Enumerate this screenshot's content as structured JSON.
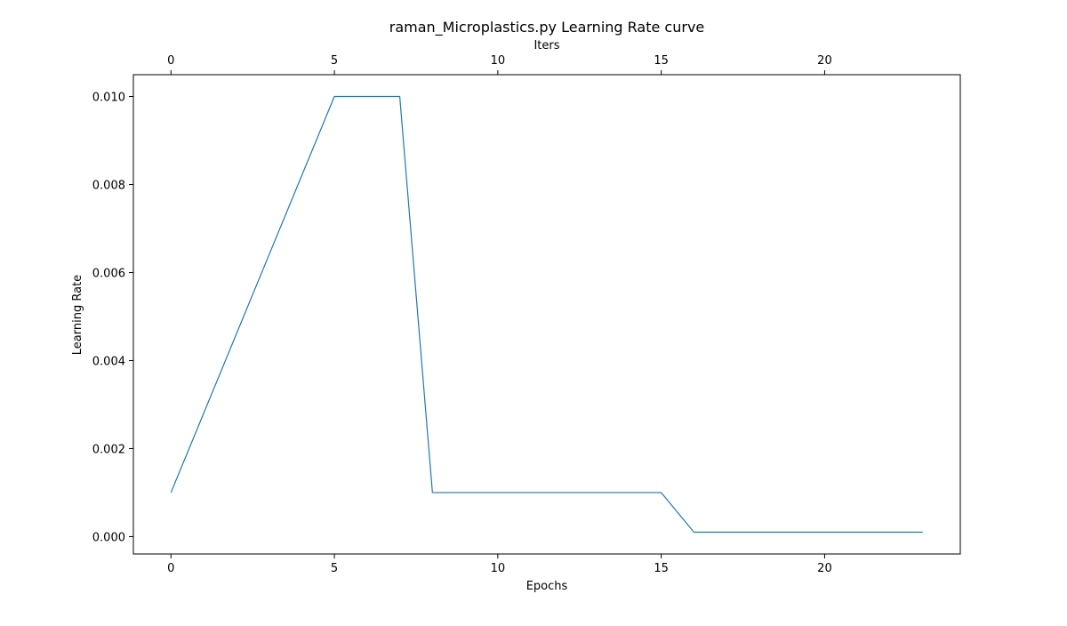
{
  "chart_data": {
    "type": "line",
    "title": "raman_Microplastics.py Learning Rate curve",
    "xlabel": "Epochs",
    "ylabel": "Learning Rate",
    "x2label": "Iters",
    "xlim": [
      -1.15,
      24.15
    ],
    "ylim": [
      -0.000395,
      0.010495
    ],
    "xticks": [
      0,
      5,
      10,
      15,
      20
    ],
    "xtick_labels": [
      "0",
      "5",
      "10",
      "15",
      "20"
    ],
    "x2ticks": [
      0,
      5,
      10,
      15,
      20
    ],
    "x2tick_labels": [
      "0",
      "5",
      "10",
      "15",
      "20"
    ],
    "yticks": [
      0.0,
      0.002,
      0.004,
      0.006,
      0.008,
      0.01
    ],
    "ytick_labels": [
      "0.000",
      "0.002",
      "0.004",
      "0.006",
      "0.008",
      "0.010"
    ],
    "grid": false,
    "line_color": "#1f77b4",
    "series": [
      {
        "x": [
          0,
          1,
          2,
          3,
          4,
          5,
          6,
          7,
          8,
          9,
          10,
          11,
          12,
          13,
          14,
          15,
          16,
          17,
          18,
          19,
          20,
          21,
          22,
          23
        ],
        "values": [
          0.001,
          0.0028,
          0.0046,
          0.0064,
          0.0082,
          0.01,
          0.01,
          0.01,
          0.001,
          0.001,
          0.001,
          0.001,
          0.001,
          0.001,
          0.001,
          0.001,
          0.0001,
          0.0001,
          0.0001,
          0.0001,
          0.0001,
          0.0001,
          0.0001,
          0.0001
        ]
      }
    ]
  }
}
